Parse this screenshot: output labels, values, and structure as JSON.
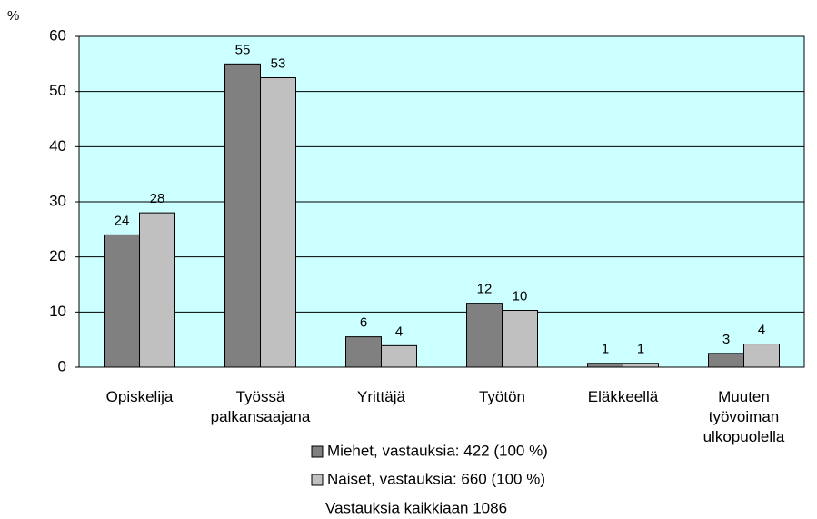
{
  "chart_data": {
    "type": "bar",
    "y_label": "%",
    "categories": [
      "Opiskelija",
      "Työssä\npalkansaajana",
      "Yrittäjä",
      "Työtön",
      "Eläkkeellä",
      "Muuten\ntyövoiman\nulkopuolella"
    ],
    "series": [
      {
        "name": "Miehet, vastauksia: 422 (100 %)",
        "color": "#808080",
        "values": [
          24,
          55,
          5.5,
          11.6,
          0.7,
          2.5
        ],
        "value_labels": [
          "24",
          "55",
          "6",
          "12",
          "1",
          "3"
        ]
      },
      {
        "name": "Naiset, vastauksia: 660 (100 %)",
        "color": "#c0c0c0",
        "values": [
          28,
          52.5,
          3.9,
          10.3,
          0.7,
          4.2
        ],
        "value_labels": [
          "28",
          "53",
          "4",
          "10",
          "1",
          "4"
        ]
      }
    ],
    "annotation": "Vastauksia kaikkiaan 1086",
    "ylim": [
      0,
      60
    ],
    "yticks": [
      0,
      10,
      20,
      30,
      40,
      50,
      60
    ],
    "grid": true,
    "background": "#ccffff"
  }
}
